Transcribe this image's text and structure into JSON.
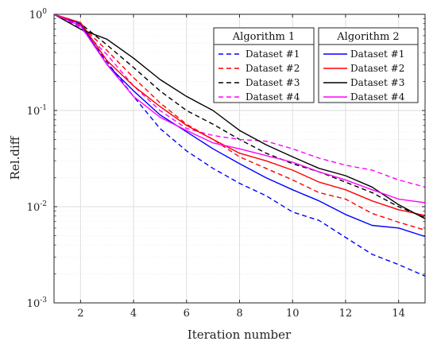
{
  "chart_data": {
    "type": "line",
    "xlabel": "Iteration number",
    "ylabel": "Rel.diff",
    "xlim": [
      1,
      15
    ],
    "ylim": [
      0.001,
      1
    ],
    "yscale": "log",
    "grid": true,
    "x_ticks": [
      2,
      4,
      6,
      8,
      10,
      12,
      14
    ],
    "y_ticks": [
      {
        "value": 0.001,
        "base": "10",
        "exp": "-3"
      },
      {
        "value": 0.01,
        "base": "10",
        "exp": "-2"
      },
      {
        "value": 0.1,
        "base": "10",
        "exp": "-1"
      },
      {
        "value": 1,
        "base": "10",
        "exp": "0"
      }
    ],
    "x": [
      1,
      2,
      3,
      4,
      5,
      6,
      7,
      8,
      9,
      10,
      11,
      12,
      13,
      14,
      15
    ],
    "legends": [
      {
        "title": "Algorithm 1",
        "placement": "top-right"
      },
      {
        "title": "Algorithm 2",
        "placement": "top-right"
      }
    ],
    "series": [
      {
        "name": "Dataset #1",
        "group": 0,
        "dash": "dashed",
        "color": "#0000ff",
        "values": [
          1.0,
          0.75,
          0.32,
          0.14,
          0.065,
          0.038,
          0.025,
          0.0175,
          0.013,
          0.0088,
          0.0072,
          0.0048,
          0.0032,
          0.0025,
          0.0019
        ]
      },
      {
        "name": "Dataset #2",
        "group": 0,
        "dash": "dashed",
        "color": "#ff0000",
        "values": [
          1.0,
          0.78,
          0.42,
          0.22,
          0.12,
          0.072,
          0.05,
          0.033,
          0.025,
          0.019,
          0.014,
          0.012,
          0.0085,
          0.0069,
          0.0057
        ]
      },
      {
        "name": "Dataset #3",
        "group": 0,
        "dash": "dashed",
        "color": "#000000",
        "values": [
          1.0,
          0.8,
          0.48,
          0.28,
          0.16,
          0.1,
          0.072,
          0.05,
          0.036,
          0.028,
          0.023,
          0.018,
          0.014,
          0.01,
          0.0077
        ]
      },
      {
        "name": "Dataset #4",
        "group": 0,
        "dash": "dashed",
        "color": "#ff00ff",
        "values": [
          1.0,
          0.72,
          0.38,
          0.18,
          0.1,
          0.065,
          0.055,
          0.05,
          0.048,
          0.04,
          0.032,
          0.027,
          0.024,
          0.019,
          0.016
        ]
      },
      {
        "name": "Dataset #1",
        "group": 1,
        "dash": "solid",
        "color": "#0000ff",
        "values": [
          1.0,
          0.8,
          0.3,
          0.16,
          0.09,
          0.06,
          0.04,
          0.028,
          0.02,
          0.015,
          0.0115,
          0.0083,
          0.0064,
          0.006,
          0.0049
        ]
      },
      {
        "name": "Dataset #2",
        "group": 1,
        "dash": "solid",
        "color": "#ff0000",
        "values": [
          1.0,
          0.82,
          0.33,
          0.18,
          0.11,
          0.07,
          0.05,
          0.036,
          0.03,
          0.024,
          0.018,
          0.015,
          0.0115,
          0.0093,
          0.0081
        ]
      },
      {
        "name": "Dataset #3",
        "group": 1,
        "dash": "solid",
        "color": "#000000",
        "values": [
          1.0,
          0.7,
          0.55,
          0.35,
          0.21,
          0.14,
          0.1,
          0.062,
          0.044,
          0.033,
          0.025,
          0.021,
          0.016,
          0.0105,
          0.0075
        ]
      },
      {
        "name": "Dataset #4",
        "group": 1,
        "dash": "solid",
        "color": "#ff00ff",
        "values": [
          1.0,
          0.76,
          0.3,
          0.14,
          0.085,
          0.062,
          0.046,
          0.04,
          0.034,
          0.029,
          0.023,
          0.019,
          0.015,
          0.012,
          0.011
        ]
      }
    ]
  }
}
